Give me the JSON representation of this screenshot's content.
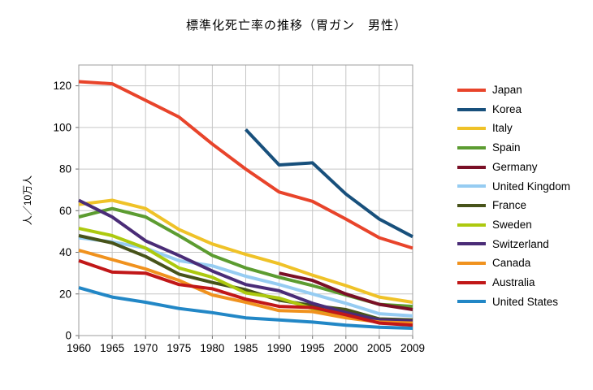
{
  "chart_data": {
    "type": "line",
    "title": "標準化死亡率の推移（胃ガン　男性）",
    "ylabel": "人／10万人",
    "xlabel": "",
    "categories": [
      "1960",
      "1965",
      "1970",
      "1975",
      "1980",
      "1985",
      "1990",
      "1995",
      "2000",
      "2005",
      "2009"
    ],
    "yticks": [
      0,
      20,
      40,
      60,
      80,
      100,
      120
    ],
    "ylim": [
      0,
      130
    ],
    "grid": true,
    "legend_position": "right",
    "grid_color": "#c6c6c6",
    "border_color": "#9c9c9c",
    "series": [
      {
        "name": "Japan",
        "color": "#E8442B",
        "values": [
          122,
          121,
          113,
          105,
          92,
          80,
          69,
          64.5,
          56,
          47,
          42
        ]
      },
      {
        "name": "Korea",
        "color": "#18507C",
        "values": [
          null,
          null,
          null,
          null,
          null,
          99,
          82,
          83,
          68,
          56,
          47.5
        ]
      },
      {
        "name": "Italy",
        "color": "#EFC228",
        "values": [
          63,
          65,
          61,
          51,
          44,
          39,
          34.5,
          29,
          24,
          18.5,
          16
        ]
      },
      {
        "name": "Spain",
        "color": "#5C9C31",
        "values": [
          57,
          61,
          57,
          48,
          38.5,
          32.5,
          28,
          24,
          19.5,
          15,
          14
        ]
      },
      {
        "name": "Germany",
        "color": "#7A1026",
        "values": [
          null,
          null,
          null,
          null,
          null,
          null,
          30,
          26.5,
          20,
          15,
          12.5
        ]
      },
      {
        "name": "United Kingdom",
        "color": "#96CCF2",
        "values": [
          47,
          45,
          42,
          36,
          33.5,
          28.5,
          24.5,
          20,
          15.5,
          10.5,
          9.5
        ]
      },
      {
        "name": "France",
        "color": "#47531A",
        "values": [
          48,
          44.5,
          38,
          29.5,
          25.5,
          22,
          17,
          14.5,
          12.5,
          8,
          7.5
        ]
      },
      {
        "name": "Sweden",
        "color": "#ADC90F",
        "values": [
          51.5,
          48,
          42,
          32.5,
          28,
          20.5,
          18,
          13,
          9,
          7,
          6.5
        ]
      },
      {
        "name": "Switzerland",
        "color": "#4A2C77",
        "values": [
          65,
          57,
          45.5,
          38.5,
          31,
          24.5,
          21.5,
          15.5,
          11,
          7.5,
          7
        ]
      },
      {
        "name": "Canada",
        "color": "#F0921E",
        "values": [
          41,
          36.5,
          32,
          26.5,
          19.5,
          16,
          12,
          11.5,
          8.5,
          6.5,
          6
        ]
      },
      {
        "name": "Australia",
        "color": "#C11718",
        "values": [
          36,
          30.5,
          30,
          24.5,
          22.5,
          17.5,
          14,
          13.5,
          10,
          6,
          5
        ]
      },
      {
        "name": "United States",
        "color": "#2287C6",
        "values": [
          23,
          18.5,
          16,
          13,
          11,
          8.5,
          7.5,
          6.5,
          5,
          4,
          3.5
        ]
      }
    ]
  }
}
